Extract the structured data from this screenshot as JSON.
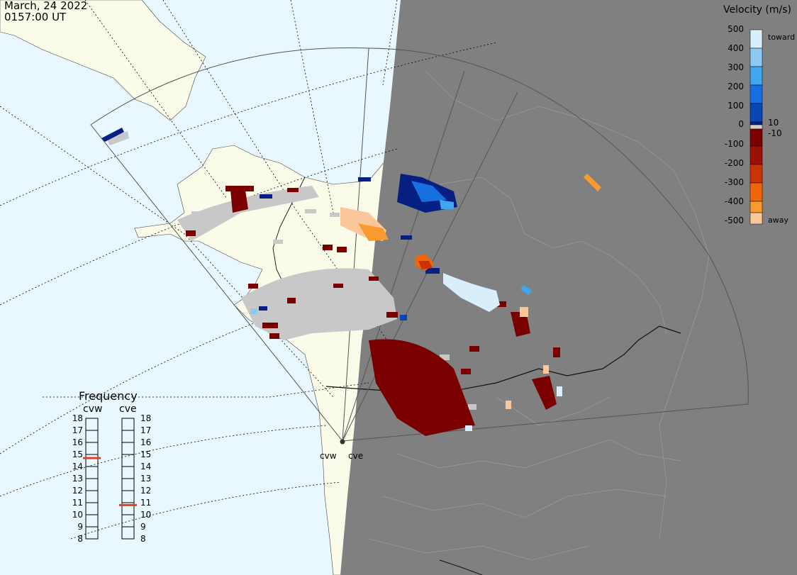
{
  "header": {
    "date": "March, 24 2022",
    "time": "0157:00 UT"
  },
  "velocity_scale": {
    "title": "Velocity (m/s)",
    "ticks": [
      "500",
      "400",
      "300",
      "200",
      "100",
      "0",
      "-100",
      "-200",
      "-300",
      "-400",
      "-500"
    ],
    "extra": [
      "10",
      "-10"
    ],
    "toward_label": "toward",
    "away_label": "away",
    "colors_top_to_bottom": [
      "#d9eefb",
      "#8ccaf2",
      "#3fa6ef",
      "#1670e0",
      "#0a45b4",
      "#051f82",
      "#cfcfcf",
      "#7a0000",
      "#9b1006",
      "#c93305",
      "#f0660b",
      "#f99a2f",
      "#fbc79a"
    ]
  },
  "frequency": {
    "title": "Frequency",
    "radars": [
      {
        "name": "cvw",
        "value_mhz": 14.7
      },
      {
        "name": "cve",
        "value_mhz": 10.8
      }
    ],
    "ticks": [
      "18",
      "17",
      "16",
      "15",
      "14",
      "13",
      "12",
      "11",
      "10",
      "9",
      "8"
    ],
    "indicator_color": "#e2431e"
  },
  "sites": {
    "cvw": "cvw",
    "cve": "cve"
  },
  "colors": {
    "ocean": "#e9f7fe",
    "land": "#fbfbea",
    "night": "#808080",
    "fov_line": "#555555",
    "scatter_ground": "#c8c8c8"
  }
}
